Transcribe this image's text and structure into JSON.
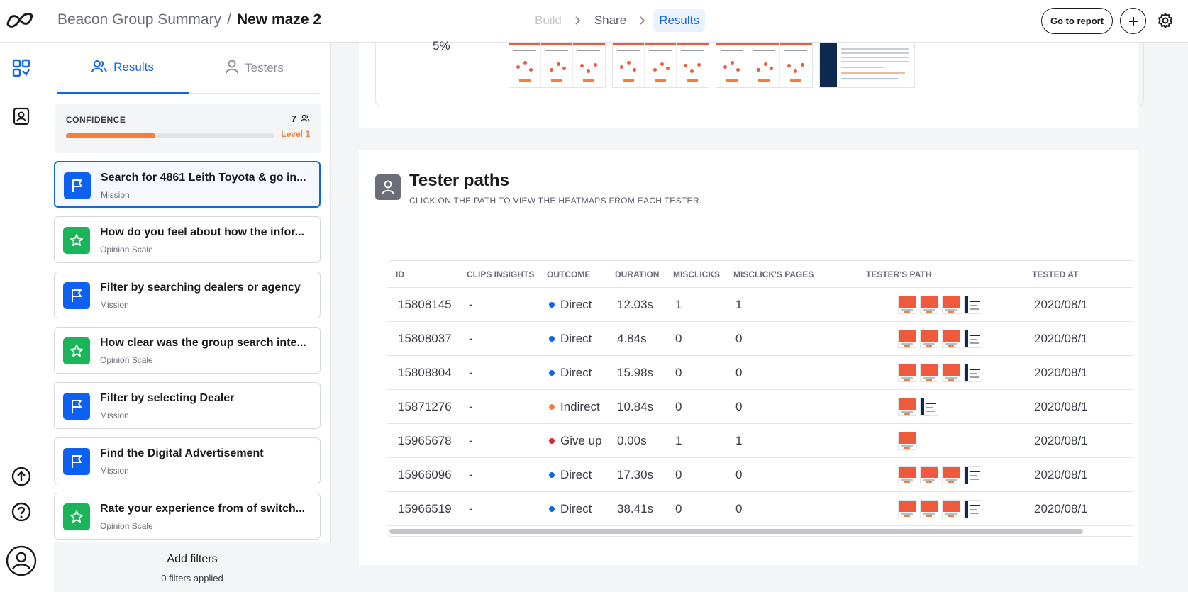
{
  "header": {
    "breadcrumb_parent": "Beacon Group Summary",
    "breadcrumb_separator": "/",
    "breadcrumb_current": "New maze 2",
    "steps": [
      "Build",
      "Share",
      "Results"
    ],
    "go_to_report": "Go to report"
  },
  "tabs": {
    "results": "Results",
    "testers": "Testers"
  },
  "confidence": {
    "label": "CONFIDENCE",
    "count": "7",
    "level": "Level 1",
    "progress": 0.43
  },
  "blocks": [
    {
      "title": "Search for 4861 Leith Toyota & go in...",
      "type": "Mission",
      "kind": "mission"
    },
    {
      "title": "How do you feel about how the infor...",
      "type": "Opinion Scale",
      "kind": "opinion"
    },
    {
      "title": "Filter by searching dealers or agency",
      "type": "Mission",
      "kind": "mission"
    },
    {
      "title": "How clear was the group search inte...",
      "type": "Opinion Scale",
      "kind": "opinion"
    },
    {
      "title": "Filter by selecting Dealer",
      "type": "Mission",
      "kind": "mission"
    },
    {
      "title": "Find the Digital Advertisement",
      "type": "Mission",
      "kind": "mission"
    },
    {
      "title": "Rate your experience from of switch...",
      "type": "Opinion Scale",
      "kind": "opinion"
    }
  ],
  "filters": {
    "title": "Add filters",
    "subtitle": "0 filters applied"
  },
  "top_card": {
    "percentage": "5%"
  },
  "tester_paths": {
    "title": "Tester paths",
    "subtitle": "CLICK ON THE PATH TO VIEW THE HEATMAPS FROM EACH TESTER.",
    "columns": [
      "ID",
      "CLIPS INSIGHTS",
      "OUTCOME",
      "DURATION",
      "MISCLICKS",
      "MISCLICK'S PAGES",
      "TESTER'S PATH",
      "TESTED AT"
    ],
    "rows": [
      {
        "id": "15808145",
        "clips": "-",
        "outcome": "Direct",
        "outcome_color": "#1166e8",
        "duration": "12.03s",
        "misclicks": "1",
        "misclick_pages": "1",
        "path": [
          "red",
          "red",
          "red",
          "dash"
        ],
        "tested_at": "2020/08/1"
      },
      {
        "id": "15808037",
        "clips": "-",
        "outcome": "Direct",
        "outcome_color": "#1166e8",
        "duration": "4.84s",
        "misclicks": "0",
        "misclick_pages": "0",
        "path": [
          "red",
          "red",
          "red",
          "dash"
        ],
        "tested_at": "2020/08/1"
      },
      {
        "id": "15808804",
        "clips": "-",
        "outcome": "Direct",
        "outcome_color": "#1166e8",
        "duration": "15.98s",
        "misclicks": "0",
        "misclick_pages": "0",
        "path": [
          "red",
          "red",
          "red",
          "dash"
        ],
        "tested_at": "2020/08/1"
      },
      {
        "id": "15871276",
        "clips": "-",
        "outcome": "Indirect",
        "outcome_color": "#f47f3a",
        "duration": "10.84s",
        "misclicks": "0",
        "misclick_pages": "0",
        "path": [
          "red",
          "dash"
        ],
        "tested_at": "2020/08/1"
      },
      {
        "id": "15965678",
        "clips": "-",
        "outcome": "Give up",
        "outcome_color": "#d62839",
        "duration": "0.00s",
        "misclicks": "1",
        "misclick_pages": "1",
        "path": [
          "red"
        ],
        "tested_at": "2020/08/1"
      },
      {
        "id": "15966096",
        "clips": "-",
        "outcome": "Direct",
        "outcome_color": "#1166e8",
        "duration": "17.30s",
        "misclicks": "0",
        "misclick_pages": "0",
        "path": [
          "red",
          "red",
          "red",
          "dash"
        ],
        "tested_at": "2020/08/1"
      },
      {
        "id": "15966519",
        "clips": "-",
        "outcome": "Direct",
        "outcome_color": "#1166e8",
        "duration": "38.41s",
        "misclicks": "0",
        "misclick_pages": "0",
        "path": [
          "red",
          "red",
          "red",
          "dash"
        ],
        "tested_at": "2020/08/1"
      }
    ]
  },
  "icons": {
    "logo": "maze-logo-icon",
    "rail": [
      "dashboard-icon",
      "contacts-book-icon",
      "upload-icon",
      "help-icon",
      "user-avatar-icon"
    ],
    "settings": "gear-icon",
    "plus": "plus-icon"
  }
}
